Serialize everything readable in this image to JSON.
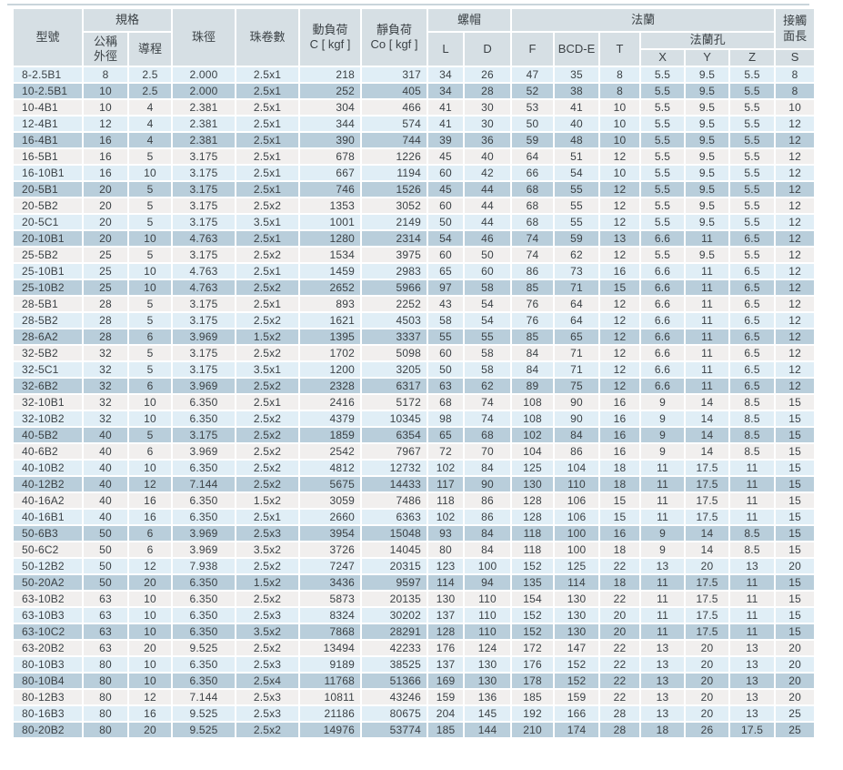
{
  "page": {
    "background": "#ffffff",
    "top_divider_color": "#c9d5db"
  },
  "colors": {
    "header_bg": "#d6dfe4",
    "row_light_blue": "#e0eef6",
    "row_dark_blue": "#b9cedb",
    "row_gray": "#f1efee",
    "grid_white": "#ffffff",
    "text": "#3b4145"
  },
  "table": {
    "header": {
      "model": "型號",
      "spec_group": "規格",
      "nominal_od": "公稱\n外徑",
      "lead": "導程",
      "ball_diameter": "珠徑",
      "ball_circuits": "珠卷數",
      "dynamic_load": "動負荷\nC [ kgf ]",
      "static_load": "靜負荷\nCo [ kgf ]",
      "nut_group": "螺帽",
      "nut_l": "L",
      "nut_d": "D",
      "flange_group": "法蘭",
      "flange_f": "F",
      "flange_bcd": "BCD-E",
      "flange_t": "T",
      "flange_holes_group": "法蘭孔",
      "hole_x": "X",
      "hole_y": "Y",
      "hole_z": "Z",
      "contact_length": "接觸\n面長",
      "contact_s": "S"
    },
    "rows": [
      [
        "8-2.5B1",
        "8",
        "2.5",
        "2.000",
        "2.5x1",
        "218",
        "317",
        "34",
        "26",
        "47",
        "35",
        "8",
        "5.5",
        "9.5",
        "5.5",
        "8"
      ],
      [
        "10-2.5B1",
        "10",
        "2.5",
        "2.000",
        "2.5x1",
        "252",
        "405",
        "34",
        "28",
        "52",
        "38",
        "8",
        "5.5",
        "9.5",
        "5.5",
        "8"
      ],
      [
        "10-4B1",
        "10",
        "4",
        "2.381",
        "2.5x1",
        "304",
        "466",
        "41",
        "30",
        "53",
        "41",
        "10",
        "5.5",
        "9.5",
        "5.5",
        "10"
      ],
      [
        "12-4B1",
        "12",
        "4",
        "2.381",
        "2.5x1",
        "344",
        "574",
        "41",
        "30",
        "50",
        "40",
        "10",
        "5.5",
        "9.5",
        "5.5",
        "12"
      ],
      [
        "16-4B1",
        "16",
        "4",
        "2.381",
        "2.5x1",
        "390",
        "744",
        "39",
        "36",
        "59",
        "48",
        "10",
        "5.5",
        "9.5",
        "5.5",
        "12"
      ],
      [
        "16-5B1",
        "16",
        "5",
        "3.175",
        "2.5x1",
        "678",
        "1226",
        "45",
        "40",
        "64",
        "51",
        "12",
        "5.5",
        "9.5",
        "5.5",
        "12"
      ],
      [
        "16-10B1",
        "16",
        "10",
        "3.175",
        "2.5x1",
        "667",
        "1194",
        "60",
        "42",
        "66",
        "54",
        "10",
        "5.5",
        "9.5",
        "5.5",
        "12"
      ],
      [
        "20-5B1",
        "20",
        "5",
        "3.175",
        "2.5x1",
        "746",
        "1526",
        "45",
        "44",
        "68",
        "55",
        "12",
        "5.5",
        "9.5",
        "5.5",
        "12"
      ],
      [
        "20-5B2",
        "20",
        "5",
        "3.175",
        "2.5x2",
        "1353",
        "3052",
        "60",
        "44",
        "68",
        "55",
        "12",
        "5.5",
        "9.5",
        "5.5",
        "12"
      ],
      [
        "20-5C1",
        "20",
        "5",
        "3.175",
        "3.5x1",
        "1001",
        "2149",
        "50",
        "44",
        "68",
        "55",
        "12",
        "5.5",
        "9.5",
        "5.5",
        "12"
      ],
      [
        "20-10B1",
        "20",
        "10",
        "4.763",
        "2.5x1",
        "1280",
        "2314",
        "54",
        "46",
        "74",
        "59",
        "13",
        "6.6",
        "11",
        "6.5",
        "12"
      ],
      [
        "25-5B2",
        "25",
        "5",
        "3.175",
        "2.5x2",
        "1534",
        "3975",
        "60",
        "50",
        "74",
        "62",
        "12",
        "5.5",
        "9.5",
        "5.5",
        "12"
      ],
      [
        "25-10B1",
        "25",
        "10",
        "4.763",
        "2.5x1",
        "1459",
        "2983",
        "65",
        "60",
        "86",
        "73",
        "16",
        "6.6",
        "11",
        "6.5",
        "12"
      ],
      [
        "25-10B2",
        "25",
        "10",
        "4.763",
        "2.5x2",
        "2652",
        "5966",
        "97",
        "58",
        "85",
        "71",
        "15",
        "6.6",
        "11",
        "6.5",
        "12"
      ],
      [
        "28-5B1",
        "28",
        "5",
        "3.175",
        "2.5x1",
        "893",
        "2252",
        "43",
        "54",
        "76",
        "64",
        "12",
        "6.6",
        "11",
        "6.5",
        "12"
      ],
      [
        "28-5B2",
        "28",
        "5",
        "3.175",
        "2.5x2",
        "1621",
        "4503",
        "58",
        "54",
        "76",
        "64",
        "12",
        "6.6",
        "11",
        "6.5",
        "12"
      ],
      [
        "28-6A2",
        "28",
        "6",
        "3.969",
        "1.5x2",
        "1395",
        "3337",
        "55",
        "55",
        "85",
        "65",
        "12",
        "6.6",
        "11",
        "6.5",
        "12"
      ],
      [
        "32-5B2",
        "32",
        "5",
        "3.175",
        "2.5x2",
        "1702",
        "5098",
        "60",
        "58",
        "84",
        "71",
        "12",
        "6.6",
        "11",
        "6.5",
        "12"
      ],
      [
        "32-5C1",
        "32",
        "5",
        "3.175",
        "3.5x1",
        "1200",
        "3205",
        "50",
        "58",
        "84",
        "71",
        "12",
        "6.6",
        "11",
        "6.5",
        "12"
      ],
      [
        "32-6B2",
        "32",
        "6",
        "3.969",
        "2.5x2",
        "2328",
        "6317",
        "63",
        "62",
        "89",
        "75",
        "12",
        "6.6",
        "11",
        "6.5",
        "12"
      ],
      [
        "32-10B1",
        "32",
        "10",
        "6.350",
        "2.5x1",
        "2416",
        "5172",
        "68",
        "74",
        "108",
        "90",
        "16",
        "9",
        "14",
        "8.5",
        "15"
      ],
      [
        "32-10B2",
        "32",
        "10",
        "6.350",
        "2.5x2",
        "4379",
        "10345",
        "98",
        "74",
        "108",
        "90",
        "16",
        "9",
        "14",
        "8.5",
        "15"
      ],
      [
        "40-5B2",
        "40",
        "5",
        "3.175",
        "2.5x2",
        "1859",
        "6354",
        "65",
        "68",
        "102",
        "84",
        "16",
        "9",
        "14",
        "8.5",
        "15"
      ],
      [
        "40-6B2",
        "40",
        "6",
        "3.969",
        "2.5x2",
        "2542",
        "7967",
        "72",
        "70",
        "104",
        "86",
        "16",
        "9",
        "14",
        "8.5",
        "15"
      ],
      [
        "40-10B2",
        "40",
        "10",
        "6.350",
        "2.5x2",
        "4812",
        "12732",
        "102",
        "84",
        "125",
        "104",
        "18",
        "11",
        "17.5",
        "11",
        "15"
      ],
      [
        "40-12B2",
        "40",
        "12",
        "7.144",
        "2.5x2",
        "5675",
        "14433",
        "117",
        "90",
        "130",
        "110",
        "18",
        "11",
        "17.5",
        "11",
        "15"
      ],
      [
        "40-16A2",
        "40",
        "16",
        "6.350",
        "1.5x2",
        "3059",
        "7486",
        "118",
        "86",
        "128",
        "106",
        "15",
        "11",
        "17.5",
        "11",
        "15"
      ],
      [
        "40-16B1",
        "40",
        "16",
        "6.350",
        "2.5x1",
        "2660",
        "6363",
        "102",
        "86",
        "128",
        "106",
        "15",
        "11",
        "17.5",
        "11",
        "15"
      ],
      [
        "50-6B3",
        "50",
        "6",
        "3.969",
        "2.5x3",
        "3954",
        "15048",
        "93",
        "84",
        "118",
        "100",
        "16",
        "9",
        "14",
        "8.5",
        "15"
      ],
      [
        "50-6C2",
        "50",
        "6",
        "3.969",
        "3.5x2",
        "3726",
        "14045",
        "80",
        "84",
        "118",
        "100",
        "18",
        "9",
        "14",
        "8.5",
        "15"
      ],
      [
        "50-12B2",
        "50",
        "12",
        "7.938",
        "2.5x2",
        "7247",
        "20315",
        "123",
        "100",
        "152",
        "125",
        "22",
        "13",
        "20",
        "13",
        "20"
      ],
      [
        "50-20A2",
        "50",
        "20",
        "6.350",
        "1.5x2",
        "3436",
        "9597",
        "114",
        "94",
        "135",
        "114",
        "18",
        "11",
        "17.5",
        "11",
        "15"
      ],
      [
        "63-10B2",
        "63",
        "10",
        "6.350",
        "2.5x2",
        "5873",
        "20135",
        "130",
        "110",
        "154",
        "130",
        "22",
        "11",
        "17.5",
        "11",
        "15"
      ],
      [
        "63-10B3",
        "63",
        "10",
        "6.350",
        "2.5x3",
        "8324",
        "30202",
        "137",
        "110",
        "152",
        "130",
        "20",
        "11",
        "17.5",
        "11",
        "15"
      ],
      [
        "63-10C2",
        "63",
        "10",
        "6.350",
        "3.5x2",
        "7868",
        "28291",
        "128",
        "110",
        "152",
        "130",
        "20",
        "11",
        "17.5",
        "11",
        "15"
      ],
      [
        "63-20B2",
        "63",
        "20",
        "9.525",
        "2.5x2",
        "13494",
        "42233",
        "176",
        "124",
        "172",
        "147",
        "22",
        "13",
        "20",
        "13",
        "20"
      ],
      [
        "80-10B3",
        "80",
        "10",
        "6.350",
        "2.5x3",
        "9189",
        "38525",
        "137",
        "130",
        "176",
        "152",
        "22",
        "13",
        "20",
        "13",
        "20"
      ],
      [
        "80-10B4",
        "80",
        "10",
        "6.350",
        "2.5x4",
        "11768",
        "51366",
        "169",
        "130",
        "178",
        "152",
        "22",
        "13",
        "20",
        "13",
        "20"
      ],
      [
        "80-12B3",
        "80",
        "12",
        "7.144",
        "2.5x3",
        "10811",
        "43246",
        "159",
        "136",
        "185",
        "159",
        "22",
        "13",
        "20",
        "13",
        "20"
      ],
      [
        "80-16B3",
        "80",
        "16",
        "9.525",
        "2.5x3",
        "21186",
        "80675",
        "204",
        "145",
        "192",
        "166",
        "28",
        "13",
        "20",
        "13",
        "25"
      ],
      [
        "80-20B2",
        "80",
        "20",
        "9.525",
        "2.5x2",
        "14976",
        "53774",
        "185",
        "144",
        "210",
        "174",
        "28",
        "18",
        "26",
        "17.5",
        "25"
      ]
    ]
  }
}
